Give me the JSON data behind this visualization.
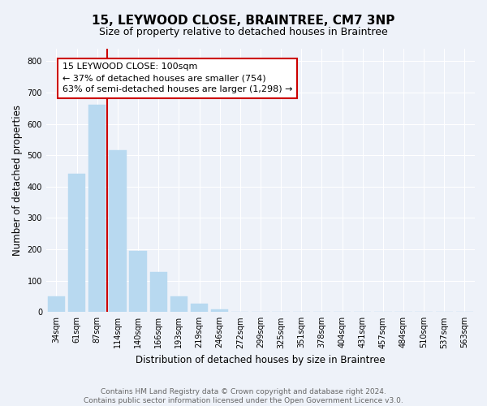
{
  "title": "15, LEYWOOD CLOSE, BRAINTREE, CM7 3NP",
  "subtitle": "Size of property relative to detached houses in Braintree",
  "xlabel": "Distribution of detached houses by size in Braintree",
  "ylabel": "Number of detached properties",
  "bar_labels": [
    "34sqm",
    "61sqm",
    "87sqm",
    "114sqm",
    "140sqm",
    "166sqm",
    "193sqm",
    "219sqm",
    "246sqm",
    "272sqm",
    "299sqm",
    "325sqm",
    "351sqm",
    "378sqm",
    "404sqm",
    "431sqm",
    "457sqm",
    "484sqm",
    "510sqm",
    "537sqm",
    "563sqm"
  ],
  "bar_heights": [
    50,
    440,
    660,
    515,
    195,
    127,
    50,
    27,
    8,
    0,
    0,
    0,
    0,
    0,
    0,
    0,
    0,
    0,
    0,
    0,
    0
  ],
  "bar_color": "#b8d9f0",
  "bar_edge_color": "#b8d9f0",
  "vline_color": "#cc0000",
  "annotation_text": "15 LEYWOOD CLOSE: 100sqm\n← 37% of detached houses are smaller (754)\n63% of semi-detached houses are larger (1,298) →",
  "annotation_box_color": "#ffffff",
  "annotation_box_edge": "#cc0000",
  "ylim": [
    0,
    840
  ],
  "yticks": [
    0,
    100,
    200,
    300,
    400,
    500,
    600,
    700,
    800
  ],
  "footer_line1": "Contains HM Land Registry data © Crown copyright and database right 2024.",
  "footer_line2": "Contains public sector information licensed under the Open Government Licence v3.0.",
  "bg_color": "#eef2f9",
  "plot_bg_color": "#eef2f9",
  "grid_color": "#ffffff",
  "title_fontsize": 11,
  "subtitle_fontsize": 9,
  "axis_label_fontsize": 8.5,
  "tick_fontsize": 7,
  "annotation_fontsize": 8,
  "footer_fontsize": 6.5
}
